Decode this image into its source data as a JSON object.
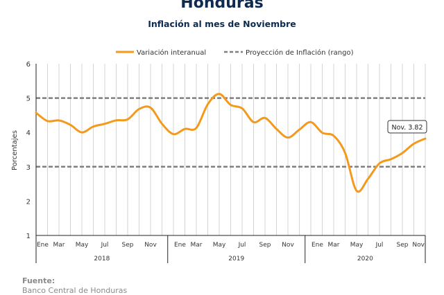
{
  "header": {
    "title": "Honduras",
    "subtitle": "Inflación al mes de Noviembre"
  },
  "footer": {
    "label": "Fuente:",
    "source": "Banco Central de Honduras"
  },
  "annotation": "Nov. 3.82",
  "colors": {
    "series": "#f39a1c",
    "projection": "#7f7f7f",
    "title": "#0d2a4f"
  },
  "chart_data": {
    "type": "line",
    "title": "Honduras",
    "subtitle": "Inflación al mes de Noviembre",
    "ylabel": "Porcentajes",
    "xlabel": "",
    "ylim": [
      1,
      6
    ],
    "yticks": [
      1,
      2,
      3,
      4,
      5,
      6
    ],
    "grid": "vertical",
    "legend_position": "top",
    "month_tick_labels": [
      "Ene",
      "Mar",
      "May",
      "Jul",
      "Sep",
      "Nov"
    ],
    "years": [
      "2018",
      "2019",
      "2020"
    ],
    "x": [
      "2018-01",
      "2018-02",
      "2018-03",
      "2018-04",
      "2018-05",
      "2018-06",
      "2018-07",
      "2018-08",
      "2018-09",
      "2018-10",
      "2018-11",
      "2018-12",
      "2019-01",
      "2019-02",
      "2019-03",
      "2019-04",
      "2019-05",
      "2019-06",
      "2019-07",
      "2019-08",
      "2019-09",
      "2019-10",
      "2019-11",
      "2019-12",
      "2020-01",
      "2020-02",
      "2020-03",
      "2020-04",
      "2020-05",
      "2020-06",
      "2020-07",
      "2020-08",
      "2020-09",
      "2020-10",
      "2020-11"
    ],
    "series": [
      {
        "name": "Variación interanual",
        "values": [
          4.57,
          4.33,
          4.35,
          4.22,
          4.0,
          4.17,
          4.25,
          4.35,
          4.38,
          4.68,
          4.72,
          4.25,
          3.95,
          4.1,
          4.13,
          4.82,
          5.12,
          4.8,
          4.7,
          4.3,
          4.42,
          4.1,
          3.85,
          4.08,
          4.3,
          3.99,
          3.9,
          3.4,
          2.3,
          2.65,
          3.1,
          3.22,
          3.4,
          3.67,
          3.82
        ]
      },
      {
        "name": "Proyección de Inflación (rango)",
        "lines": [
          3,
          5
        ]
      }
    ]
  }
}
